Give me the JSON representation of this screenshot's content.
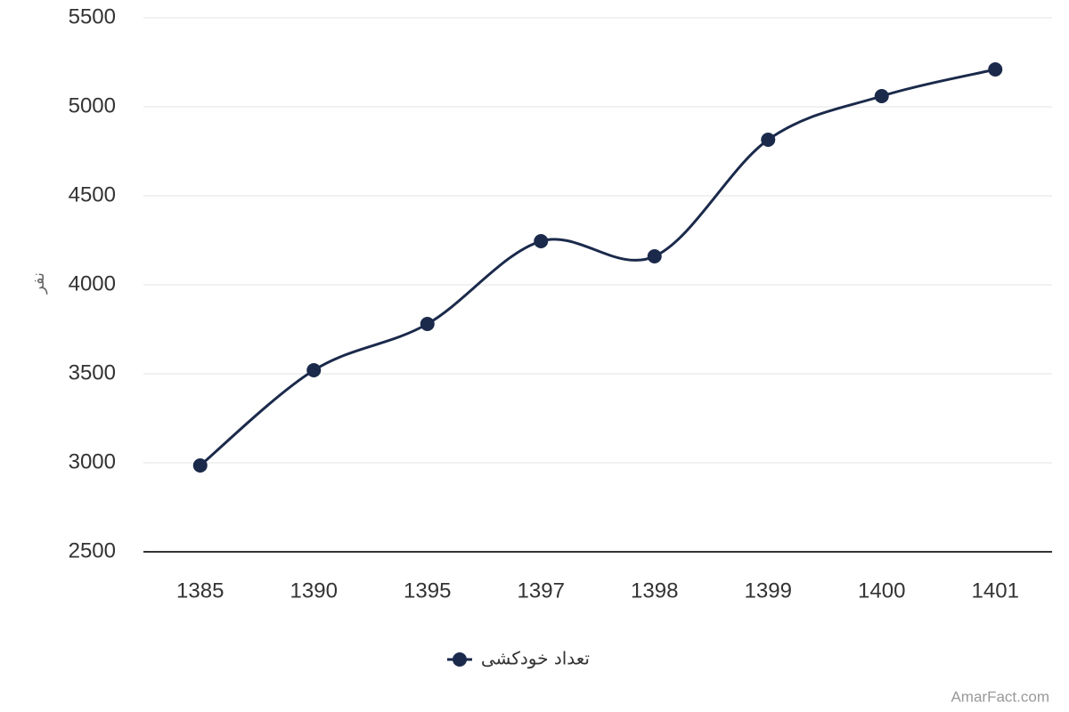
{
  "chart_data": {
    "type": "line",
    "y_label": "نفر",
    "categories": [
      "1385",
      "1390",
      "1395",
      "1397",
      "1398",
      "1399",
      "1400",
      "1401"
    ],
    "series": [
      {
        "name": "تعداد خودکشی",
        "color": "#1b2a4b",
        "values": [
          2985,
          3520,
          3780,
          4245,
          4160,
          4815,
          5060,
          5210
        ]
      }
    ],
    "ylim": [
      2500,
      5500
    ],
    "yticks": [
      2500,
      3000,
      3500,
      4000,
      4500,
      5000,
      5500
    ],
    "grid": true,
    "legend": "bottom",
    "watermark": "AmarFact.com"
  }
}
